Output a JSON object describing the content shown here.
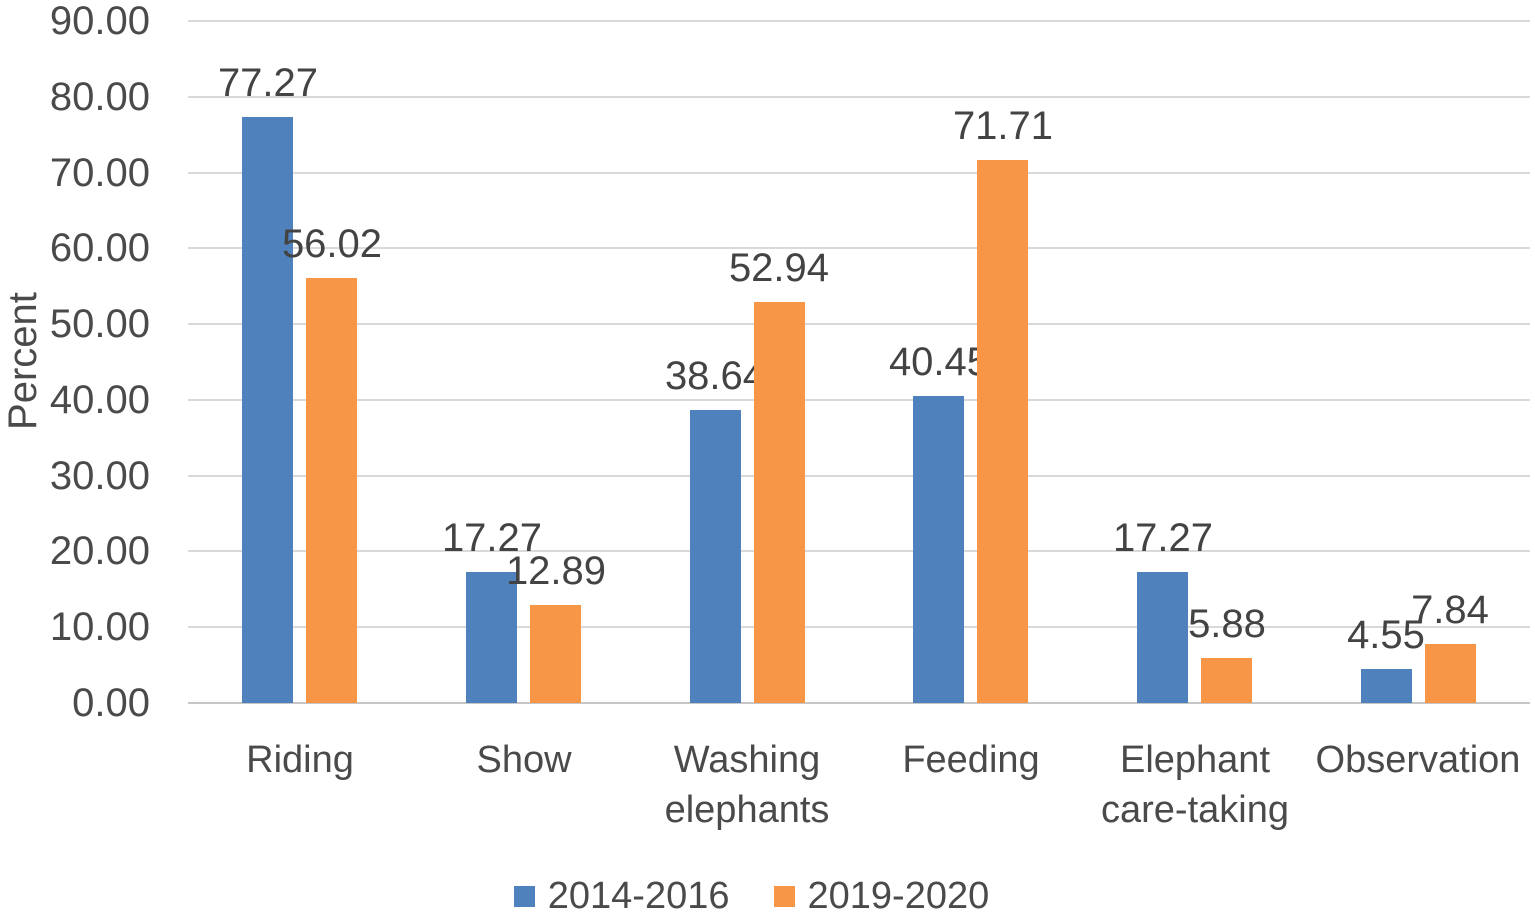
{
  "chart_data": {
    "type": "bar",
    "title": "",
    "xlabel": "",
    "ylabel": "Percent",
    "ylim": [
      0,
      90
    ],
    "ytick_step": 10,
    "ytick_decimals": 2,
    "grid": true,
    "value_labels": true,
    "value_label_decimals": 2,
    "legend_position": "bottom",
    "categories": [
      "Riding",
      "Show",
      "Washing elephants",
      "Feeding",
      "Elephant care-taking",
      "Observation"
    ],
    "series": [
      {
        "name": "2014-2016",
        "color": "#4F81BD",
        "values": [
          77.27,
          17.27,
          38.64,
          40.45,
          17.27,
          4.55
        ]
      },
      {
        "name": "2019-2020",
        "color": "#F79646",
        "values": [
          56.02,
          12.89,
          52.94,
          71.71,
          5.88,
          7.84
        ]
      }
    ],
    "colors": {
      "gridline": "#d9d9d9",
      "axisline": "#c6c6c6",
      "text": "#4a4a4a"
    }
  }
}
